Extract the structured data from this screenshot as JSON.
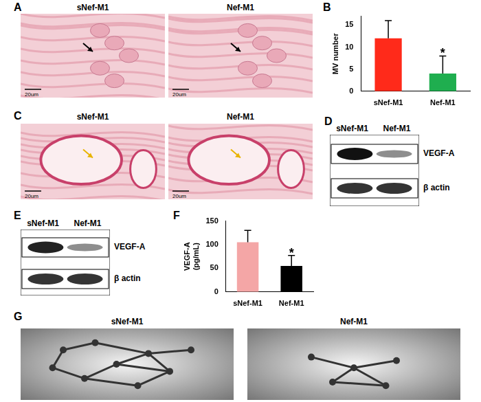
{
  "chart_data": [
    {
      "panel_label": "B",
      "type": "bar",
      "categories": [
        "sNef-M1",
        "Nef-M1"
      ],
      "values": [
        12,
        4
      ],
      "errors": [
        4,
        4
      ],
      "colors": [
        "#ff2a1a",
        "#1fae4f"
      ],
      "ylabel": "MV number",
      "ylim": [
        0,
        17
      ],
      "yticks": [
        0,
        5,
        10,
        15
      ],
      "grid": false,
      "annotations": [
        {
          "category": "Nef-M1",
          "text": "*"
        }
      ]
    },
    {
      "panel_label": "F",
      "type": "bar",
      "categories": [
        "sNef-M1",
        "Nef-M1"
      ],
      "values": [
        105,
        55
      ],
      "errors": [
        25,
        22
      ],
      "colors": [
        "#f4a6a6",
        "#000000"
      ],
      "ylabel": [
        "VEGF-A",
        "(pg/mL)"
      ],
      "ylim": [
        0,
        150
      ],
      "yticks": [
        0,
        50,
        100,
        150
      ],
      "grid": false,
      "annotations": [
        {
          "category": "Nef-M1",
          "text": "*"
        }
      ]
    }
  ],
  "panels": [
    {
      "label": "A",
      "images": [
        {
          "title": "sNef-M1",
          "scale_bar": "20um"
        },
        {
          "title": "Nef-M1",
          "scale_bar": "20um"
        }
      ]
    },
    {
      "label": "C",
      "images": [
        {
          "title": "sNef-M1",
          "scale_bar": "20um"
        },
        {
          "title": "Nef-M1",
          "scale_bar": "20um"
        }
      ]
    },
    {
      "label": "D",
      "lanes": [
        "sNef-M1",
        "Nef-M1"
      ],
      "rows": [
        "VEGF-A",
        "β actin"
      ]
    },
    {
      "label": "E",
      "lanes": [
        "sNef-M1",
        "Nef-M1"
      ],
      "rows": [
        "VEGF-A",
        "β actin"
      ]
    },
    {
      "label": "G",
      "images": [
        {
          "title": "sNef-M1"
        },
        {
          "title": "Nef-M1"
        }
      ]
    }
  ]
}
